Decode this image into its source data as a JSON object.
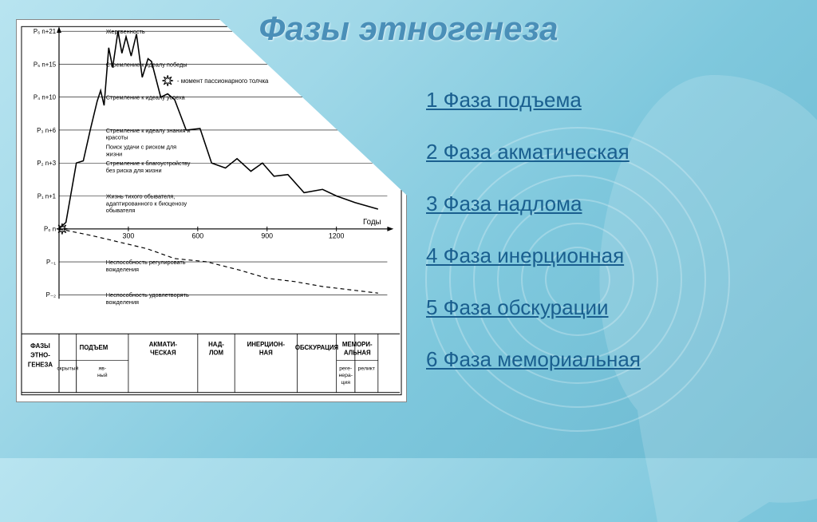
{
  "title": "Фазы этногенеза",
  "phases": [
    "1 Фаза подъема",
    "2 Фаза акматическая",
    "3 Фаза надлома",
    "4 Фаза инерционная",
    "5 Фаза обскурации",
    "6 Фаза мемориальная"
  ],
  "chart": {
    "type": "line",
    "stroke_color": "#000000",
    "background_color": "#ffffff",
    "line_width": 1.6,
    "y_axis_labels": [
      "P₋₂",
      "P₋₁",
      "P₀ n",
      "P₁ n+1",
      "P₂ n+3",
      "P₃ n+6",
      "P₄ n+10",
      "P₅ n+15",
      "P₆ n+21"
    ],
    "y_grid_values": [
      -2,
      -1,
      0,
      1,
      3,
      6,
      10,
      15,
      21
    ],
    "x_ticks": [
      300,
      600,
      900,
      1200
    ],
    "x_label": "Годы",
    "phase_row_title": "ФАЗЫ ЭТНО-ГЕНЕЗА",
    "phase_cells": [
      "ПОДЪЕМ",
      "АКМАТИ-ЧЕСКАЯ",
      "НАД-ЛОМ",
      "ИНЕРЦИОН-НАЯ",
      "ОБСКУРАЦИЯ",
      "МЕМОРИ-АЛЬНАЯ"
    ],
    "phase_sub": [
      "скрытый",
      "яв-ный",
      "",
      "",
      "",
      "",
      "реге-нера-ция",
      "реликт"
    ],
    "curve_annotations": [
      {
        "text": "Жертвенность",
        "y": 21
      },
      {
        "text": "Стремление к идеалу победы",
        "y": 15
      },
      {
        "text": "Стремление к идеалу успеха",
        "y": 10
      },
      {
        "text": "Стремление к идеалу знания и красоты",
        "y": 6
      },
      {
        "text": "Поиск удачи с риском для жизни",
        "y": 4.5
      },
      {
        "text": "Стремление к благоустройству без риска для жизни",
        "y": 3
      },
      {
        "text": "Жизнь тихого обывателя, адаптированного к биоценозу обывателя",
        "y": 1
      },
      {
        "text": "Неспособность регулировать вожделения",
        "y": -1
      },
      {
        "text": "Неспособность удовлетворять вожделения",
        "y": -2
      }
    ],
    "legend_marker": "- момент пассионарного толчка",
    "solid_curve": [
      [
        0,
        0
      ],
      [
        30,
        0.2
      ],
      [
        75,
        3
      ],
      [
        105,
        3.2
      ],
      [
        135,
        6
      ],
      [
        165,
        9.5
      ],
      [
        180,
        11
      ],
      [
        195,
        9
      ],
      [
        215,
        18
      ],
      [
        232,
        14.5
      ],
      [
        255,
        21
      ],
      [
        272,
        17
      ],
      [
        290,
        20
      ],
      [
        312,
        16.5
      ],
      [
        335,
        20.5
      ],
      [
        360,
        13
      ],
      [
        385,
        16
      ],
      [
        400,
        15.5
      ],
      [
        440,
        10
      ],
      [
        470,
        10.5
      ],
      [
        500,
        9.7
      ],
      [
        550,
        6
      ],
      [
        610,
        6.2
      ],
      [
        660,
        3
      ],
      [
        720,
        2.7
      ],
      [
        770,
        3.4
      ],
      [
        830,
        2.5
      ],
      [
        880,
        3
      ],
      [
        930,
        2.2
      ],
      [
        990,
        2.3
      ],
      [
        1060,
        1.2
      ],
      [
        1140,
        1.4
      ],
      [
        1200,
        1.0
      ],
      [
        1280,
        0.8
      ],
      [
        1380,
        0.6
      ]
    ],
    "dashed_curve": [
      [
        0,
        0
      ],
      [
        140,
        -0.2
      ],
      [
        260,
        -0.4
      ],
      [
        380,
        -0.6
      ],
      [
        500,
        -0.9
      ],
      [
        640,
        -1.0
      ],
      [
        780,
        -1.25
      ],
      [
        900,
        -1.5
      ],
      [
        1020,
        -1.6
      ],
      [
        1140,
        -1.75
      ],
      [
        1260,
        -1.85
      ],
      [
        1380,
        -1.95
      ]
    ],
    "phase_boundaries_x": [
      0,
      75,
      300,
      600,
      760,
      1030,
      1200,
      1280,
      1380
    ]
  },
  "colors": {
    "title_color": "#4a8fb8",
    "link_color": "#1a5f8f",
    "bg_gradient_start": "#b8e4f0",
    "bg_gradient_end": "#6ab8d0"
  }
}
